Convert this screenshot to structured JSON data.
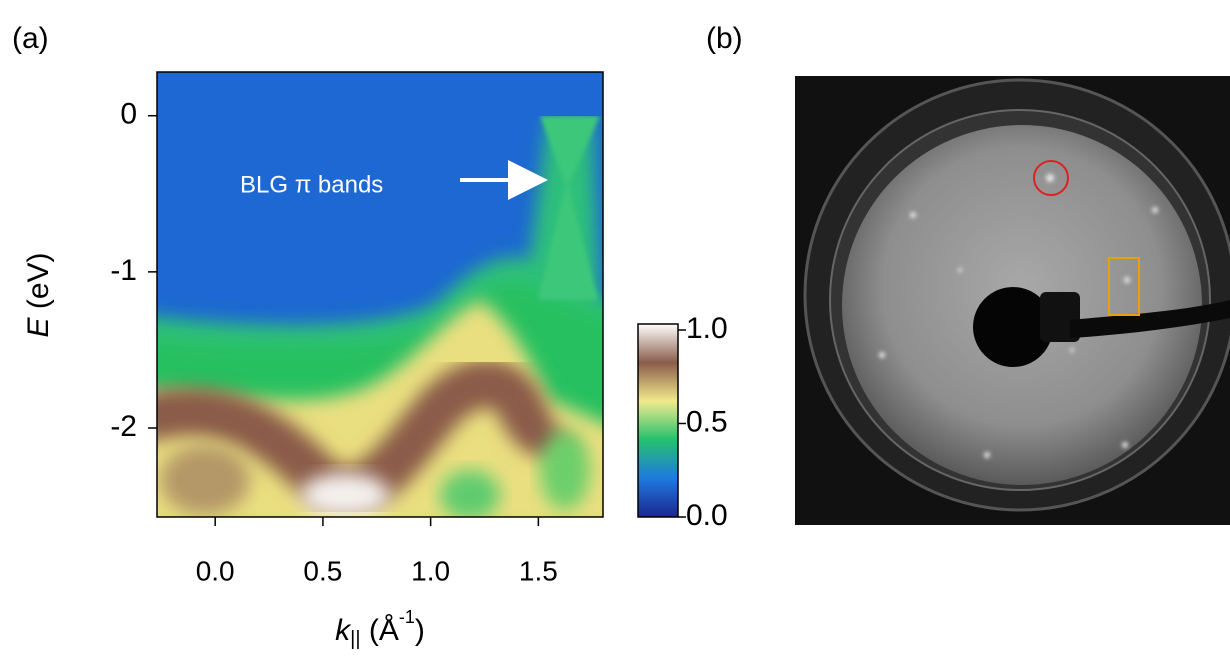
{
  "chart_data": {
    "type": "heatmap",
    "panel_label": "(a)",
    "xlabel": {
      "symbol": "k",
      "subscript": "||",
      "unit": "(Å",
      "superscript": "-1",
      "close": ")"
    },
    "ylabel": {
      "symbol": "E",
      "unit": "(eV)"
    },
    "xlim": [
      -0.27,
      1.8
    ],
    "xticks": [
      {
        "value": 0,
        "label": "0.0"
      },
      0.5,
      {
        "value": 1,
        "label": "1.0"
      },
      1.5
    ],
    "ylim": [
      -2.57,
      0.28
    ],
    "yticks": [
      0,
      -1,
      -2
    ],
    "annotation": "BLG π bands",
    "colorbar": {
      "lim": [
        0,
        1
      ],
      "ticks": [
        {
          "value": 0,
          "label": "0.0"
        },
        0.5,
        {
          "value": 1,
          "label": "1.0"
        }
      ],
      "colormap": [
        "#1b2690",
        "#1f7ae0",
        "#25c06e",
        "#f1ea8c",
        "#8a5c4a",
        "#ffffff"
      ]
    }
  },
  "image_panel": {
    "label": "(b)"
  }
}
